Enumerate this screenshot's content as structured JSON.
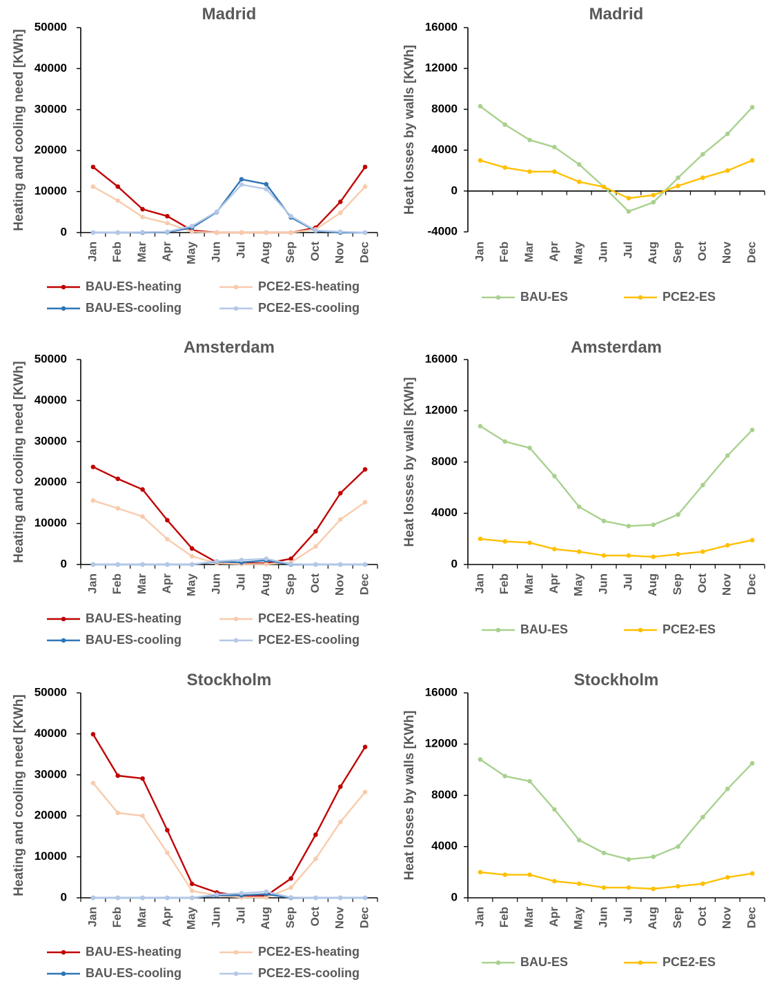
{
  "figure": {
    "months": [
      "Jan",
      "Feb",
      "Mar",
      "Apr",
      "May",
      "Jun",
      "Jul",
      "Aug",
      "Sep",
      "Oct",
      "Nov",
      "Dec"
    ],
    "colors": {
      "BAU-ES-heating": "#C00000",
      "PCE2-ES-heating": "#F8CBAD",
      "BAU-ES-cooling": "#2E75B6",
      "PCE2-ES-cooling": "#B4C7E7",
      "BAU-ES": "#A9D18E",
      "PCE2-ES": "#FFC000"
    }
  },
  "chart_data": [
    {
      "type": "line",
      "title": "Madrid",
      "ylabel": "Heating and cooling need [KWh]",
      "categories": [
        "Jan",
        "Feb",
        "Mar",
        "Apr",
        "May",
        "Jun",
        "Jul",
        "Aug",
        "Sep",
        "Oct",
        "Nov",
        "Dec"
      ],
      "ylim": [
        0,
        50000
      ],
      "yticks": [
        0,
        10000,
        20000,
        30000,
        40000,
        50000
      ],
      "legend": "bottom",
      "series": [
        {
          "name": "BAU-ES-heating",
          "values": [
            16000,
            11200,
            5700,
            4000,
            500,
            0,
            0,
            0,
            0,
            1200,
            7500,
            16000
          ]
        },
        {
          "name": "PCE2-ES-heating",
          "values": [
            11200,
            7800,
            3800,
            2300,
            200,
            0,
            0,
            0,
            0,
            800,
            4800,
            11200
          ]
        },
        {
          "name": "BAU-ES-cooling",
          "values": [
            0,
            0,
            0,
            100,
            1200,
            5000,
            13000,
            11800,
            3700,
            400,
            0,
            0
          ]
        },
        {
          "name": "PCE2-ES-cooling",
          "values": [
            0,
            0,
            100,
            200,
            1600,
            5100,
            11700,
            10600,
            4000,
            500,
            200,
            0
          ]
        }
      ]
    },
    {
      "type": "line",
      "title": "Madrid",
      "ylabel": "Heat losses by walls [KWh]",
      "categories": [
        "Jan",
        "Feb",
        "Mar",
        "Apr",
        "May",
        "Jun",
        "Jul",
        "Aug",
        "Sep",
        "Oct",
        "Nov",
        "Dec"
      ],
      "ylim": [
        -4000,
        16000
      ],
      "yticks": [
        -4000,
        0,
        4000,
        8000,
        12000,
        16000
      ],
      "legend": "bottom",
      "series": [
        {
          "name": "BAU-ES",
          "values": [
            8300,
            6500,
            5000,
            4300,
            2600,
            400,
            -2000,
            -1100,
            1300,
            3600,
            5600,
            8200
          ]
        },
        {
          "name": "PCE2-ES",
          "values": [
            3000,
            2300,
            1900,
            1900,
            900,
            400,
            -700,
            -400,
            500,
            1300,
            2000,
            3000
          ]
        }
      ]
    },
    {
      "type": "line",
      "title": "Amsterdam",
      "ylabel": "Heating and cooling need [KWh]",
      "categories": [
        "Jan",
        "Feb",
        "Mar",
        "Apr",
        "May",
        "Jun",
        "Jul",
        "Aug",
        "Sep",
        "Oct",
        "Nov",
        "Dec"
      ],
      "ylim": [
        0,
        50000
      ],
      "yticks": [
        0,
        10000,
        20000,
        30000,
        40000,
        50000
      ],
      "legend": "bottom",
      "series": [
        {
          "name": "BAU-ES-heating",
          "values": [
            23800,
            20900,
            18300,
            10800,
            3900,
            500,
            300,
            300,
            1400,
            8100,
            17400,
            23200
          ]
        },
        {
          "name": "PCE2-ES-heating",
          "values": [
            15600,
            13700,
            11700,
            6200,
            2000,
            300,
            100,
            100,
            500,
            4400,
            11000,
            15200
          ]
        },
        {
          "name": "BAU-ES-cooling",
          "values": [
            0,
            0,
            0,
            0,
            0,
            700,
            500,
            1000,
            0,
            0,
            0,
            0
          ]
        },
        {
          "name": "PCE2-ES-cooling",
          "values": [
            0,
            0,
            0,
            0,
            0,
            800,
            1100,
            1400,
            100,
            0,
            0,
            0
          ]
        }
      ]
    },
    {
      "type": "line",
      "title": "Amsterdam",
      "ylabel": "Heat losses by walls [KWh]",
      "categories": [
        "Jan",
        "Feb",
        "Mar",
        "Apr",
        "May",
        "Jun",
        "Jul",
        "Aug",
        "Sep",
        "Oct",
        "Nov",
        "Dec"
      ],
      "ylim": [
        0,
        16000
      ],
      "yticks": [
        0,
        4000,
        8000,
        12000,
        16000
      ],
      "legend": "bottom",
      "series": [
        {
          "name": "BAU-ES",
          "values": [
            10800,
            9600,
            9100,
            6900,
            4500,
            3400,
            3000,
            3100,
            3900,
            6200,
            8500,
            10500
          ]
        },
        {
          "name": "PCE2-ES",
          "values": [
            2000,
            1800,
            1700,
            1200,
            1000,
            700,
            700,
            600,
            800,
            1000,
            1500,
            1900
          ]
        }
      ]
    },
    {
      "type": "line",
      "title": "Stockholm",
      "ylabel": "Heating and cooling need [KWh]",
      "categories": [
        "Jan",
        "Feb",
        "Mar",
        "Apr",
        "May",
        "Jun",
        "Jul",
        "Aug",
        "Sep",
        "Oct",
        "Nov",
        "Dec"
      ],
      "ylim": [
        0,
        50000
      ],
      "yticks": [
        0,
        10000,
        20000,
        30000,
        40000,
        50000
      ],
      "legend": "bottom",
      "series": [
        {
          "name": "BAU-ES-heating",
          "values": [
            39900,
            29800,
            29100,
            16500,
            3400,
            1300,
            500,
            500,
            4700,
            15400,
            27100,
            36800
          ]
        },
        {
          "name": "PCE2-ES-heating",
          "values": [
            28000,
            20700,
            20000,
            11000,
            1700,
            600,
            100,
            100,
            2500,
            9500,
            18500,
            25800
          ]
        },
        {
          "name": "BAU-ES-cooling",
          "values": [
            0,
            0,
            0,
            0,
            0,
            600,
            600,
            900,
            0,
            0,
            0,
            0
          ]
        },
        {
          "name": "PCE2-ES-cooling",
          "values": [
            0,
            0,
            0,
            0,
            0,
            800,
            1100,
            1500,
            100,
            0,
            0,
            0
          ]
        }
      ]
    },
    {
      "type": "line",
      "title": "Stockholm",
      "ylabel": "Heat losses by walls [KWh]",
      "categories": [
        "Jan",
        "Feb",
        "Mar",
        "Apr",
        "May",
        "Jun",
        "Jul",
        "Aug",
        "Sep",
        "Oct",
        "Nov",
        "Dec"
      ],
      "ylim": [
        0,
        16000
      ],
      "yticks": [
        0,
        4000,
        8000,
        12000,
        16000
      ],
      "legend": "bottom",
      "series": [
        {
          "name": "BAU-ES",
          "values": [
            10800,
            9500,
            9100,
            6900,
            4500,
            3500,
            3000,
            3200,
            4000,
            6300,
            8500,
            10500
          ]
        },
        {
          "name": "PCE2-ES",
          "values": [
            2000,
            1800,
            1800,
            1300,
            1100,
            800,
            800,
            700,
            900,
            1100,
            1600,
            1900
          ]
        }
      ]
    }
  ]
}
